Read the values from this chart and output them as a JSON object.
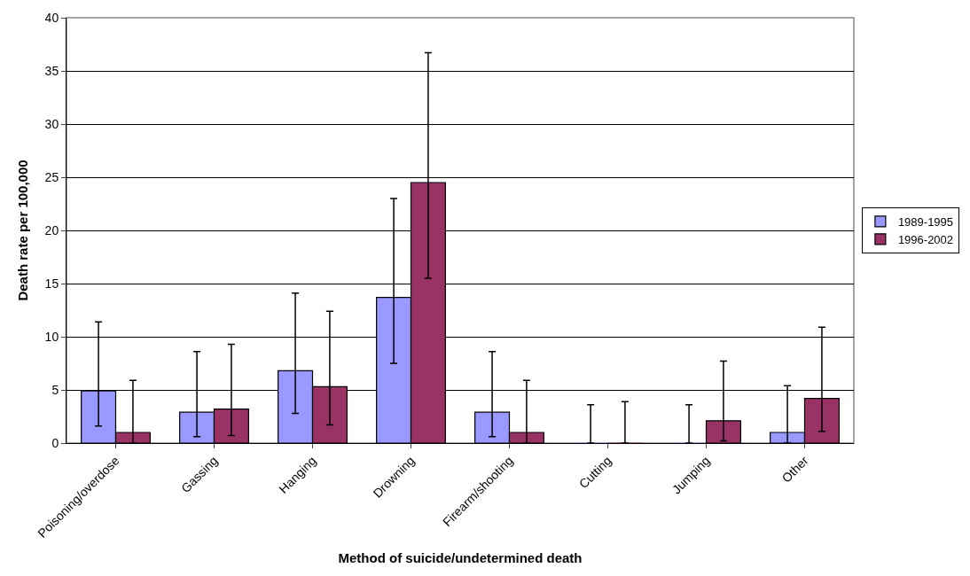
{
  "chart_data": {
    "type": "bar",
    "xlabel": "Method of suicide/undetermined death",
    "ylabel": "Death rate per 100,000",
    "categories": [
      "Poisoning/overdose",
      "Gassing",
      "Hanging",
      "Drowning",
      "Firearm/shooting",
      "Cutting",
      "Jumping",
      "Other"
    ],
    "series": [
      {
        "name": "1989-1995",
        "color": "#9999ff",
        "values": [
          4.9,
          2.9,
          6.8,
          13.7,
          2.9,
          0,
          0,
          1.0
        ],
        "errors": [
          [
            1.6,
            11.4
          ],
          [
            0.6,
            8.6
          ],
          [
            2.8,
            14.1
          ],
          [
            7.5,
            23.0
          ],
          [
            0.6,
            8.6
          ],
          [
            0,
            3.6
          ],
          [
            0,
            3.6
          ],
          [
            0,
            5.4
          ]
        ]
      },
      {
        "name": "1996-2002",
        "color": "#993366",
        "values": [
          1.0,
          3.2,
          5.3,
          24.5,
          1.0,
          0,
          2.1,
          4.2
        ],
        "errors": [
          [
            0,
            5.9
          ],
          [
            0.7,
            9.3
          ],
          [
            1.7,
            12.4
          ],
          [
            15.5,
            36.7
          ],
          [
            0,
            5.9
          ],
          [
            0,
            3.9
          ],
          [
            0.2,
            7.7
          ],
          [
            1.1,
            10.9
          ]
        ]
      }
    ],
    "ylim": [
      0,
      40
    ],
    "yticks": [
      0,
      5,
      10,
      15,
      20,
      25,
      30,
      35,
      40
    ],
    "grid": "y",
    "legend": "right"
  }
}
